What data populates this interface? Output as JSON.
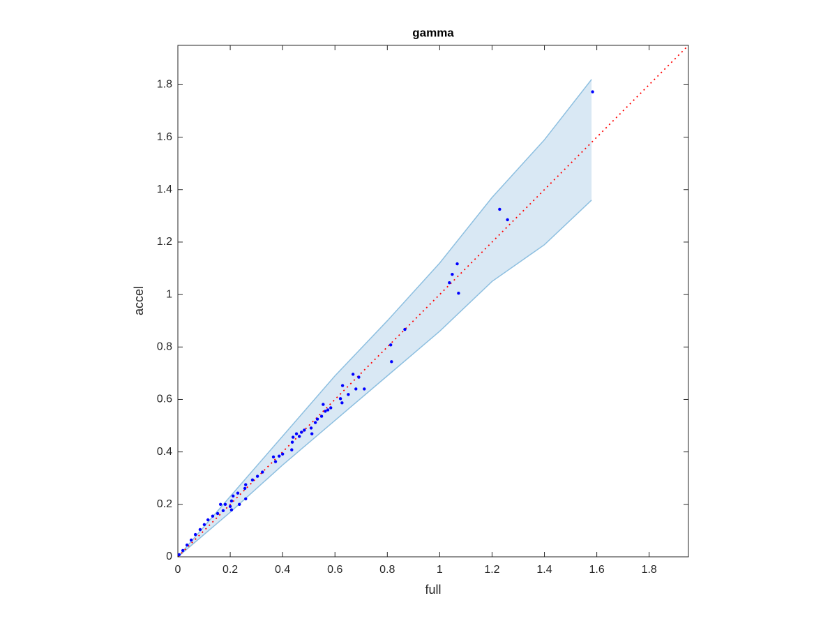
{
  "chart_data": {
    "type": "scatter",
    "title": "gamma",
    "x_label": "full",
    "y_label": "accel",
    "xlim": [
      0,
      1.95
    ],
    "ylim": [
      0,
      1.95
    ],
    "xticks": [
      0,
      0.2,
      0.4,
      0.6,
      0.8,
      1,
      1.2,
      1.4,
      1.6,
      1.8
    ],
    "yticks": [
      0,
      0.2,
      0.4,
      0.6,
      0.8,
      1,
      1.2,
      1.4,
      1.6,
      1.8
    ],
    "color": "#0000ff",
    "x": [
      1.584,
      1.229,
      1.259,
      1.067,
      1.048,
      1.037,
      1.072,
      0.867,
      0.813,
      0.816,
      0.669,
      0.691,
      0.712,
      0.68,
      0.629,
      0.651,
      0.621,
      0.627,
      0.555,
      0.584,
      0.573,
      0.563,
      0.549,
      0.533,
      0.525,
      0.509,
      0.512,
      0.483,
      0.472,
      0.453,
      0.464,
      0.44,
      0.437,
      0.435,
      0.4,
      0.387,
      0.365,
      0.373,
      0.323,
      0.304,
      0.285,
      0.259,
      0.256,
      0.259,
      0.235,
      0.229,
      0.211,
      0.205,
      0.2,
      0.181,
      0.163,
      0.173,
      0.152,
      0.133,
      0.115,
      0.101,
      0.085,
      0.067,
      0.051,
      0.035,
      0.019,
      0.005,
      0.205
    ],
    "values": [
      1.773,
      1.325,
      1.285,
      1.117,
      1.077,
      1.045,
      1.005,
      0.867,
      0.808,
      0.744,
      0.696,
      0.685,
      0.64,
      0.64,
      0.653,
      0.619,
      0.603,
      0.587,
      0.581,
      0.568,
      0.56,
      0.555,
      0.536,
      0.525,
      0.512,
      0.491,
      0.469,
      0.483,
      0.475,
      0.469,
      0.459,
      0.456,
      0.437,
      0.408,
      0.392,
      0.384,
      0.381,
      0.363,
      0.323,
      0.307,
      0.293,
      0.275,
      0.261,
      0.221,
      0.2,
      0.243,
      0.232,
      0.213,
      0.192,
      0.2,
      0.2,
      0.176,
      0.165,
      0.155,
      0.141,
      0.123,
      0.104,
      0.085,
      0.064,
      0.045,
      0.024,
      0.008,
      0.179
    ],
    "band": {
      "x": [
        0,
        0.2,
        0.4,
        0.6,
        0.8,
        1.0,
        1.2,
        1.4,
        1.58
      ],
      "upper": [
        0,
        0.23,
        0.46,
        0.69,
        0.9,
        1.12,
        1.37,
        1.59,
        1.82
      ],
      "lower": [
        0,
        0.17,
        0.35,
        0.52,
        0.69,
        0.86,
        1.05,
        1.19,
        1.36
      ],
      "color": "#8dbfe0",
      "fill": "#d9e8f4"
    },
    "reference_line": {
      "x": [
        0,
        1.95
      ],
      "y": [
        0,
        1.95
      ],
      "color": "#ff0000"
    }
  }
}
